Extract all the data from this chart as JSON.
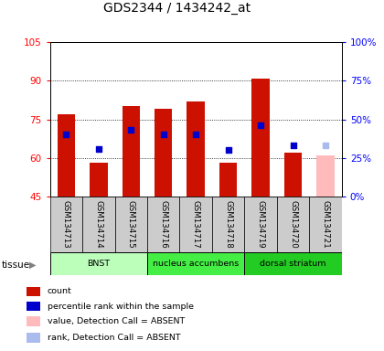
{
  "title": "GDS2344 / 1434242_at",
  "samples": [
    "GSM134713",
    "GSM134714",
    "GSM134715",
    "GSM134716",
    "GSM134717",
    "GSM134718",
    "GSM134719",
    "GSM134720",
    "GSM134721"
  ],
  "count_values": [
    77,
    58,
    80,
    79,
    82,
    58,
    91,
    62,
    61
  ],
  "rank_values": [
    40,
    31,
    43,
    40,
    40,
    30,
    46,
    33,
    33
  ],
  "absent_flags": [
    false,
    false,
    false,
    false,
    false,
    false,
    false,
    false,
    true
  ],
  "ylim_left": [
    45,
    105
  ],
  "ylim_right": [
    0,
    100
  ],
  "yticks_left": [
    45,
    60,
    75,
    90,
    105
  ],
  "yticks_right": [
    0,
    25,
    50,
    75,
    100
  ],
  "ytick_labels_left": [
    "45",
    "60",
    "75",
    "90",
    "105"
  ],
  "ytick_labels_right": [
    "0%",
    "25%",
    "50%",
    "75%",
    "100%"
  ],
  "tissue_groups": [
    {
      "label": "BNST",
      "start": 0,
      "end": 3,
      "color": "#bbffbb"
    },
    {
      "label": "nucleus accumbens",
      "start": 3,
      "end": 6,
      "color": "#44ee44"
    },
    {
      "label": "dorsal striatum",
      "start": 6,
      "end": 9,
      "color": "#22cc22"
    }
  ],
  "bar_color_present": "#cc1100",
  "bar_color_absent": "#ffbbbb",
  "rank_color_present": "#0000cc",
  "rank_color_absent": "#aabbee",
  "bar_width": 0.55,
  "rank_marker_size": 18,
  "plot_bg_color": "#ffffff",
  "title_fontsize": 10,
  "tick_fontsize": 7.5,
  "label_area_color": "#cccccc",
  "legend_items": [
    {
      "color": "#cc1100",
      "label": "count"
    },
    {
      "color": "#0000cc",
      "label": "percentile rank within the sample"
    },
    {
      "color": "#ffbbbb",
      "label": "value, Detection Call = ABSENT"
    },
    {
      "color": "#aabbee",
      "label": "rank, Detection Call = ABSENT"
    }
  ]
}
